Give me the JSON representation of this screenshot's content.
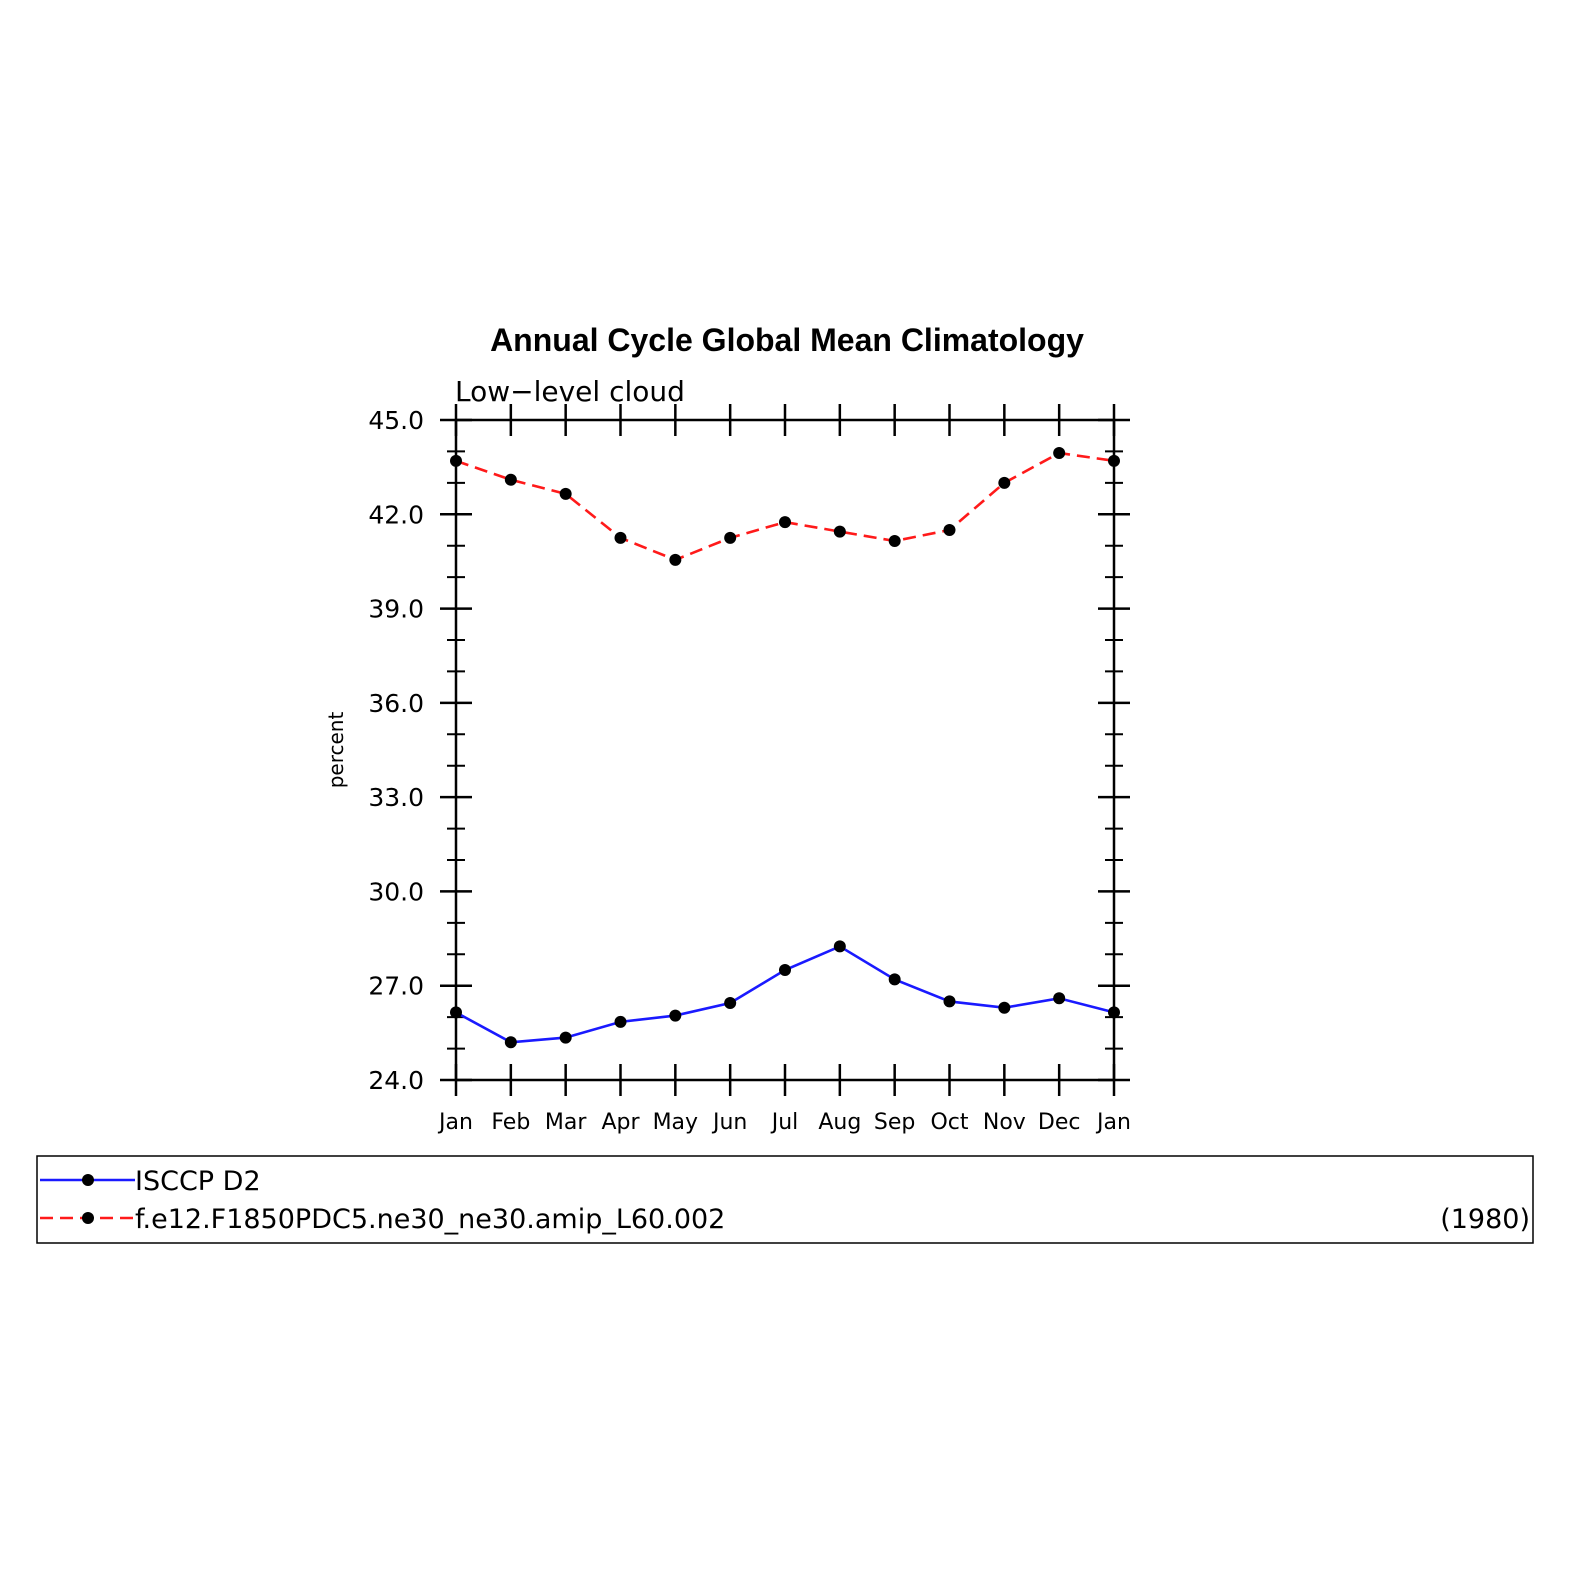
{
  "chart_data": {
    "type": "line",
    "title": "Annual Cycle Global Mean Climatology",
    "subtitle": "Low−level cloud",
    "xlabel": "",
    "ylabel": "percent",
    "categories": [
      "Jan",
      "Feb",
      "Mar",
      "Apr",
      "May",
      "Jun",
      "Jul",
      "Aug",
      "Sep",
      "Oct",
      "Nov",
      "Dec",
      "Jan"
    ],
    "ylim": [
      24.0,
      45.0
    ],
    "yticks": [
      "24.0",
      "27.0",
      "30.0",
      "33.0",
      "36.0",
      "39.0",
      "42.0",
      "45.0"
    ],
    "grid": false,
    "legend_position": "bottom",
    "series": [
      {
        "name": "ISCCP D2",
        "color": "#1a1aff",
        "dash": "solid",
        "values": [
          26.15,
          25.2,
          25.35,
          25.85,
          26.05,
          26.45,
          27.5,
          28.25,
          27.2,
          26.5,
          26.3,
          26.6,
          26.15
        ]
      },
      {
        "name": "f.e12.F1850PDC5.ne30_ne30.amip_L60.002",
        "color": "#ff1a1a",
        "dash": "dashed",
        "values": [
          43.7,
          43.1,
          42.65,
          41.25,
          40.55,
          41.25,
          41.75,
          41.45,
          41.15,
          41.5,
          43.0,
          43.95,
          43.7
        ]
      }
    ],
    "legend_note": "(1980)"
  }
}
